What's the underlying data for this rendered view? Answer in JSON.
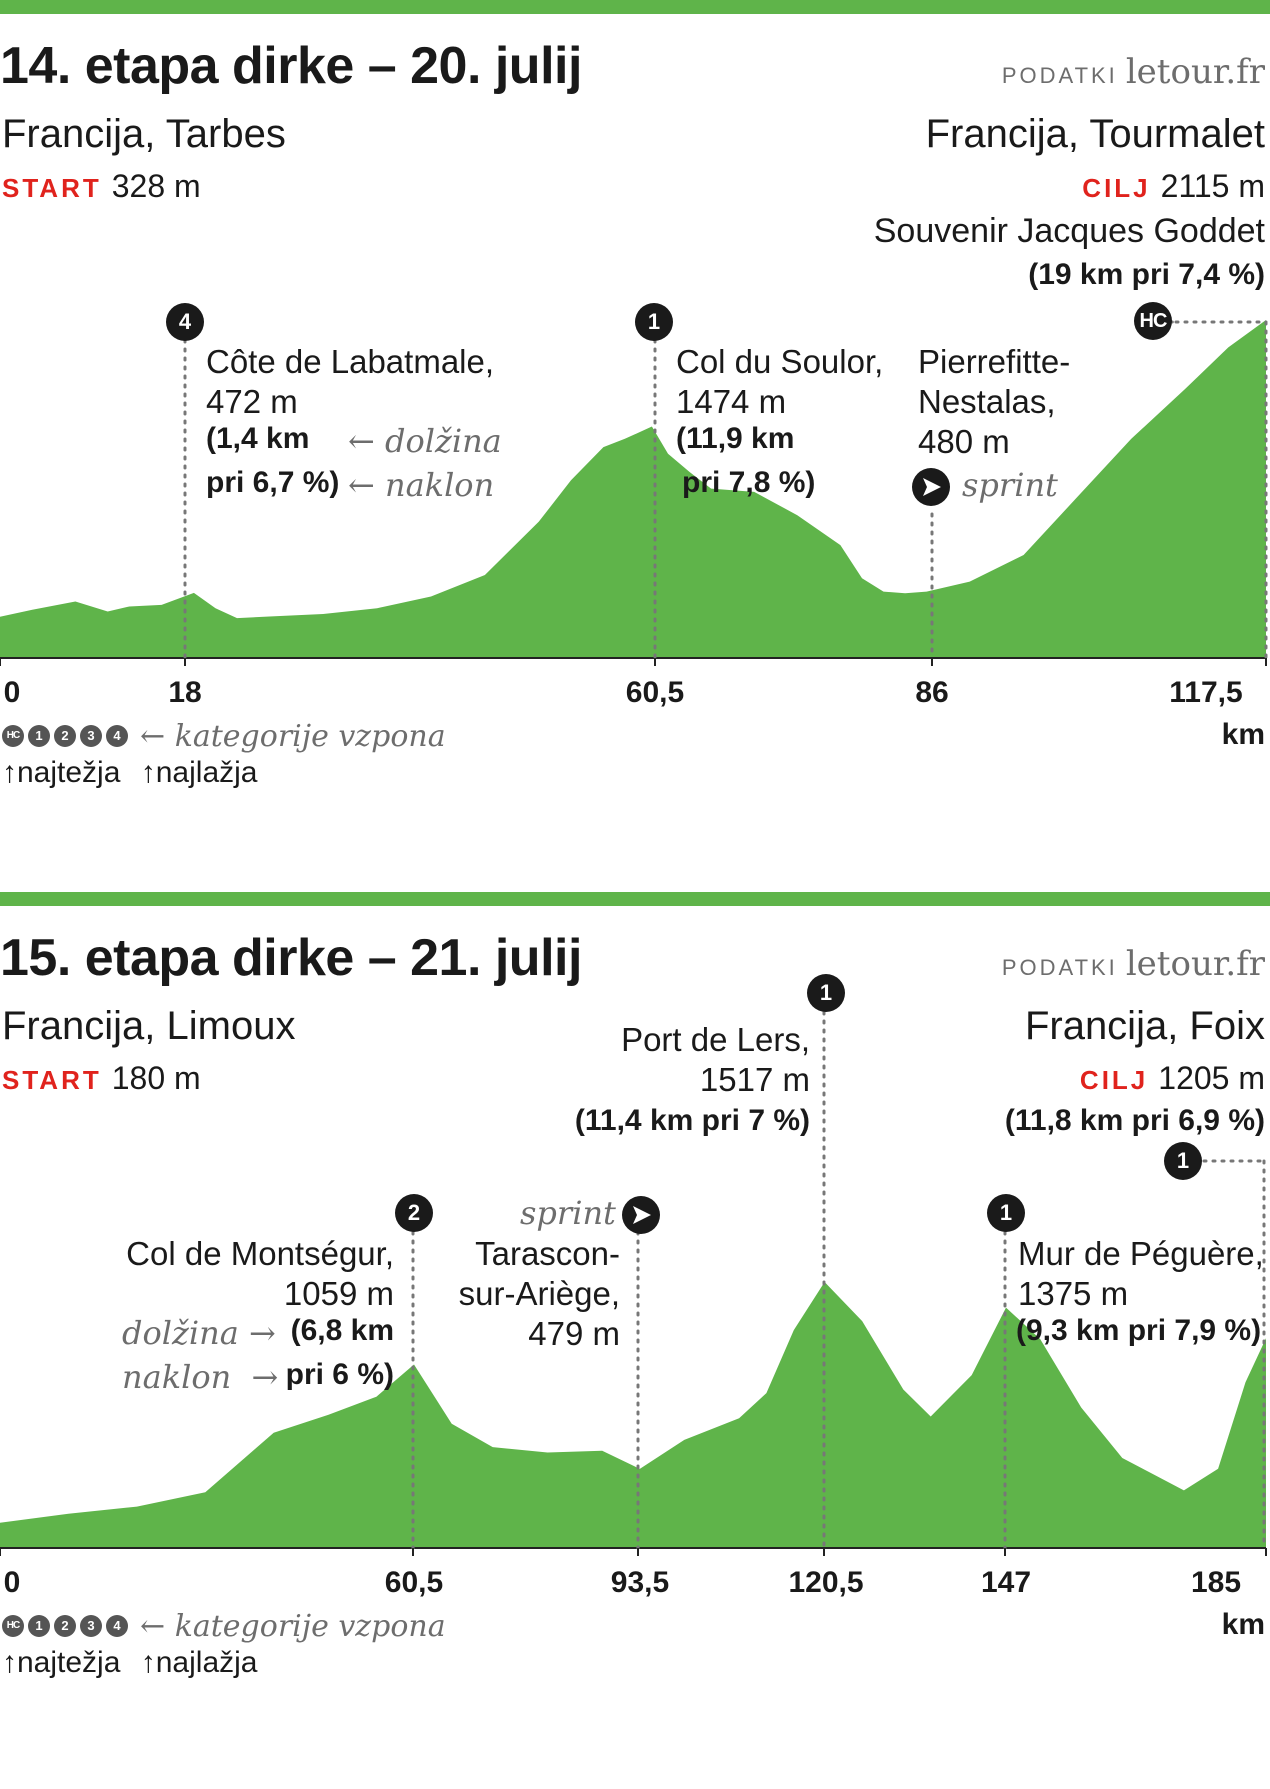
{
  "colors": {
    "accent_bar": "#5fb44a",
    "profile_fill": "#5fb44a",
    "start_cilj": "#e0231d",
    "badge": "#1a1a1a"
  },
  "legend": {
    "categories": [
      "HC",
      "1",
      "2",
      "3",
      "4"
    ],
    "text": "kategorije vzpona",
    "hardest": "najtežja",
    "easiest": "najlažja"
  },
  "stage14": {
    "title": "14. etapa dirke – 20. julij",
    "source_label": "PODATKI",
    "source": "letour.fr",
    "start_place": "Francija, Tarbes",
    "start_tag": "START",
    "start_alt": "328 m",
    "finish_place": "Francija, Tourmalet",
    "finish_tag": "CILJ",
    "finish_alt": "2115 m",
    "finish_sub": "Souvenir Jacques Goddet",
    "finish_climb": "(19 km pri 7,4 %)",
    "finish_cat": "HC",
    "climb1": {
      "cat": "4",
      "name": "Côte de Labatmale,",
      "alt": "472 m",
      "len": "(1,4 km",
      "grad": "pri 6,7 %)",
      "len_hint": "dolžina",
      "grad_hint": "naklon"
    },
    "climb2": {
      "cat": "1",
      "name": "Col du Soulor,",
      "alt": "1474 m",
      "len": "(11,9 km",
      "grad": "pri 7,8 %)"
    },
    "sprint": {
      "name1": "Pierrefitte-",
      "name2": "Nestalas,",
      "alt": "480 m",
      "label": "sprint"
    },
    "ticks": [
      "0",
      "18",
      "60,5",
      "86",
      "117,5"
    ],
    "unit": "km"
  },
  "stage15": {
    "title": "15. etapa dirke – 21. julij",
    "source_label": "PODATKI",
    "source": "letour.fr",
    "start_place": "Francija, Limoux",
    "start_tag": "START",
    "start_alt": "180 m",
    "finish_place": "Francija, Foix",
    "finish_tag": "CILJ",
    "finish_alt": "1205 m",
    "finish_climb": "(11,8 km pri 6,9 %)",
    "finish_cat": "1",
    "climb1": {
      "cat": "2",
      "name": "Col de Montségur,",
      "alt": "1059 m",
      "len": "(6,8 km",
      "grad": "pri 6 %)",
      "len_hint": "dolžina",
      "grad_hint": "naklon"
    },
    "sprint": {
      "name1": "Tarascon-",
      "name2": "sur-Ariège,",
      "alt": "479 m",
      "label": "sprint"
    },
    "climb2": {
      "cat": "1",
      "name": "Port de Lers,",
      "alt": "1517 m",
      "len_grad": "(11,4 km pri 7 %)"
    },
    "climb3": {
      "cat": "1",
      "name": "Mur de Péguère,",
      "alt": "1375 m",
      "len_grad": "(9,3 km pri 7,9 %)"
    },
    "ticks": [
      "0",
      "60,5",
      "93,5",
      "120,5",
      "147",
      "185"
    ],
    "unit": "km"
  },
  "chart_data": [
    {
      "type": "area",
      "title": "14. etapa dirke – 20. julij",
      "xlabel": "km",
      "x": [
        0,
        3,
        7,
        10,
        12,
        15,
        18,
        20,
        22,
        25,
        30,
        35,
        40,
        45,
        50,
        53,
        56,
        58,
        60.5,
        62,
        64,
        66,
        70,
        74,
        78,
        80,
        82,
        84,
        86,
        90,
        95,
        100,
        105,
        110,
        114,
        117.5
      ],
      "y": [
        328,
        370,
        420,
        360,
        390,
        400,
        472,
        380,
        320,
        330,
        345,
        380,
        450,
        580,
        900,
        1150,
        1350,
        1400,
        1474,
        1310,
        1200,
        1100,
        1080,
        940,
        760,
        560,
        480,
        470,
        480,
        540,
        700,
        1050,
        1400,
        1700,
        1950,
        2115
      ],
      "xticks": [
        "0",
        "18",
        "60,5",
        "86",
        "117,5"
      ],
      "xlim": [
        0,
        117.5
      ],
      "ylim": [
        0,
        2115
      ]
    },
    {
      "type": "area",
      "title": "15. etapa dirke – 21. julij",
      "xlabel": "km",
      "x": [
        0,
        10,
        20,
        30,
        40,
        48,
        55,
        60.5,
        66,
        72,
        80,
        88,
        93.5,
        100,
        108,
        112,
        116,
        120.5,
        126,
        132,
        136,
        142,
        147,
        152,
        158,
        164,
        168,
        173,
        178,
        182,
        185
      ],
      "y": [
        180,
        230,
        270,
        350,
        680,
        780,
        880,
        1059,
        730,
        600,
        570,
        580,
        479,
        640,
        760,
        900,
        1250,
        1517,
        1300,
        920,
        770,
        1000,
        1375,
        1200,
        820,
        540,
        460,
        360,
        480,
        960,
        1205
      ],
      "xticks": [
        "0",
        "60,5",
        "93,5",
        "120,5",
        "147",
        "185"
      ],
      "xlim": [
        0,
        185
      ],
      "ylim": [
        0,
        1517
      ]
    }
  ]
}
